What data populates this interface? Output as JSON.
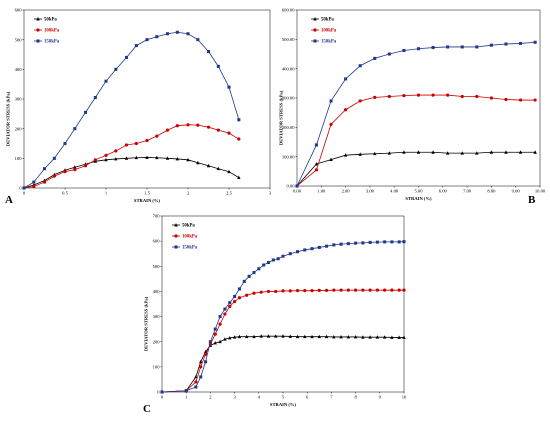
{
  "chart_data": [
    {
      "panel_label": "A",
      "type": "line",
      "xlabel": "STRAIN (%)",
      "ylabel": "DEVIATOR STRESS (kPa)",
      "xlim": [
        0,
        3
      ],
      "ylim": [
        0,
        600
      ],
      "x_ticks": [
        "0",
        "0.5",
        "1",
        "1.5",
        "2",
        "2.5",
        "3"
      ],
      "y_ticks": [
        "0",
        "100",
        "200",
        "300",
        "400",
        "500",
        "600"
      ],
      "legend_position": "top-left",
      "grid": false,
      "series": [
        {
          "name": "50kPa",
          "color": "#000000",
          "marker": "triangle",
          "x": [
            0,
            0.12,
            0.25,
            0.37,
            0.5,
            0.62,
            0.75,
            0.87,
            1.0,
            1.12,
            1.25,
            1.37,
            1.5,
            1.62,
            1.75,
            1.87,
            2.0,
            2.12,
            2.25,
            2.37,
            2.5,
            2.62
          ],
          "y": [
            0,
            10,
            25,
            45,
            60,
            70,
            80,
            90,
            95,
            98,
            100,
            102,
            103,
            102,
            100,
            98,
            95,
            85,
            75,
            65,
            55,
            35
          ]
        },
        {
          "name": "100kPa",
          "color": "#cc0000",
          "marker": "circle",
          "x": [
            0,
            0.12,
            0.25,
            0.37,
            0.5,
            0.62,
            0.75,
            0.87,
            1.0,
            1.12,
            1.25,
            1.37,
            1.5,
            1.62,
            1.75,
            1.87,
            2.0,
            2.12,
            2.25,
            2.37,
            2.5,
            2.62
          ],
          "y": [
            0,
            5,
            20,
            40,
            55,
            62,
            75,
            95,
            110,
            125,
            145,
            150,
            160,
            175,
            195,
            210,
            213,
            212,
            205,
            195,
            185,
            165
          ]
        },
        {
          "name": "150kPa",
          "color": "#1f3a8a",
          "marker": "square",
          "x": [
            0,
            0.12,
            0.25,
            0.37,
            0.5,
            0.62,
            0.75,
            0.87,
            1.0,
            1.12,
            1.25,
            1.37,
            1.5,
            1.62,
            1.75,
            1.87,
            2.0,
            2.12,
            2.25,
            2.37,
            2.5,
            2.62
          ],
          "y": [
            0,
            20,
            65,
            100,
            150,
            200,
            255,
            305,
            360,
            400,
            440,
            480,
            500,
            510,
            520,
            525,
            520,
            500,
            460,
            410,
            340,
            230
          ]
        }
      ]
    },
    {
      "panel_label": "B",
      "type": "line",
      "xlabel": "STRAIN (%)",
      "ylabel": "DEVIATOR STRESS (kPa)",
      "xlim": [
        0,
        10
      ],
      "ylim": [
        0,
        600
      ],
      "x_ticks": [
        "0.00",
        "1.00",
        "2.00",
        "3.00",
        "4.00",
        "5.00",
        "6.00",
        "7.00",
        "8.00",
        "9.00",
        "10.00"
      ],
      "y_ticks": [
        "0.00",
        "100.00",
        "200.00",
        "300.00",
        "400.00",
        "500.00",
        "600.00"
      ],
      "legend_position": "top-left",
      "grid": false,
      "series": [
        {
          "name": "50kPa",
          "color": "#000000",
          "marker": "triangle",
          "x": [
            0,
            0.8,
            1.4,
            2.0,
            2.6,
            3.2,
            3.8,
            4.4,
            5.0,
            5.6,
            6.2,
            6.8,
            7.4,
            8.0,
            8.6,
            9.2,
            9.8
          ],
          "y": [
            0,
            75,
            90,
            105,
            108,
            110,
            112,
            115,
            115,
            115,
            112,
            112,
            112,
            115,
            115,
            115,
            115
          ]
        },
        {
          "name": "100kPa",
          "color": "#cc0000",
          "marker": "circle",
          "x": [
            0,
            0.8,
            1.4,
            2.0,
            2.6,
            3.2,
            3.8,
            4.4,
            5.0,
            5.6,
            6.2,
            6.8,
            7.4,
            8.0,
            8.6,
            9.2,
            9.8
          ],
          "y": [
            0,
            55,
            210,
            260,
            290,
            302,
            305,
            308,
            310,
            310,
            310,
            305,
            305,
            300,
            295,
            293,
            293
          ]
        },
        {
          "name": "150kPa",
          "color": "#1f3a8a",
          "marker": "square",
          "x": [
            0,
            0.8,
            1.4,
            2.0,
            2.6,
            3.2,
            3.8,
            4.4,
            5.0,
            5.6,
            6.2,
            6.8,
            7.4,
            8.0,
            8.6,
            9.2,
            9.8
          ],
          "y": [
            0,
            140,
            290,
            365,
            410,
            435,
            450,
            462,
            468,
            472,
            474,
            474,
            474,
            480,
            484,
            486,
            490
          ]
        }
      ]
    },
    {
      "panel_label": "C",
      "type": "line",
      "xlabel": "STRAIN (%)",
      "ylabel": "DEVIATOR STRESS (kPa)",
      "xlim": [
        0,
        10
      ],
      "ylim": [
        0,
        700
      ],
      "x_ticks": [
        "0",
        "1",
        "2",
        "3",
        "4",
        "5",
        "6",
        "7",
        "8",
        "9",
        "10"
      ],
      "y_ticks": [
        "0",
        "100",
        "200",
        "300",
        "400",
        "500",
        "600",
        "700"
      ],
      "legend_position": "top-left",
      "grid": false,
      "series": [
        {
          "name": "50kPa",
          "color": "#000000",
          "marker": "triangle",
          "x": [
            0,
            1.0,
            1.4,
            1.6,
            1.8,
            2.0,
            2.2,
            2.4,
            2.6,
            2.8,
            3.0,
            3.2,
            3.5,
            3.8,
            4.1,
            4.4,
            4.7,
            5.0,
            5.3,
            5.6,
            5.9,
            6.2,
            6.5,
            6.8,
            7.1,
            7.4,
            7.7,
            8.0,
            8.3,
            8.6,
            8.9,
            9.2,
            9.5,
            9.8,
            10.0
          ],
          "y": [
            0,
            5,
            60,
            120,
            160,
            185,
            195,
            200,
            210,
            215,
            218,
            220,
            220,
            220,
            222,
            222,
            222,
            222,
            221,
            220,
            220,
            220,
            220,
            220,
            219,
            219,
            219,
            219,
            218,
            218,
            218,
            218,
            217,
            217,
            217
          ]
        },
        {
          "name": "100kPa",
          "color": "#cc0000",
          "marker": "circle",
          "x": [
            0,
            1.0,
            1.4,
            1.6,
            1.8,
            2.0,
            2.2,
            2.4,
            2.6,
            2.8,
            3.0,
            3.2,
            3.5,
            3.8,
            4.1,
            4.4,
            4.7,
            5.0,
            5.3,
            5.6,
            5.9,
            6.2,
            6.5,
            6.8,
            7.1,
            7.4,
            7.7,
            8.0,
            8.3,
            8.6,
            8.9,
            9.2,
            9.5,
            9.8,
            10.0
          ],
          "y": [
            0,
            5,
            40,
            100,
            150,
            190,
            230,
            270,
            310,
            340,
            360,
            375,
            385,
            393,
            397,
            400,
            400,
            402,
            402,
            403,
            403,
            403,
            404,
            404,
            405,
            405,
            405,
            405,
            405,
            405,
            405,
            405,
            405,
            405,
            405
          ]
        },
        {
          "name": "150kPa",
          "color": "#1f3a8a",
          "marker": "square",
          "x": [
            0,
            1.0,
            1.4,
            1.6,
            1.8,
            2.0,
            2.2,
            2.4,
            2.6,
            2.8,
            3.0,
            3.2,
            3.4,
            3.6,
            3.8,
            4.0,
            4.2,
            4.4,
            4.6,
            4.8,
            5.0,
            5.3,
            5.6,
            5.9,
            6.2,
            6.5,
            6.8,
            7.1,
            7.4,
            7.7,
            8.0,
            8.3,
            8.6,
            8.9,
            9.2,
            9.5,
            9.8,
            10.0
          ],
          "y": [
            0,
            5,
            20,
            60,
            120,
            200,
            250,
            300,
            330,
            355,
            380,
            410,
            440,
            460,
            475,
            490,
            505,
            515,
            525,
            530,
            540,
            550,
            558,
            565,
            570,
            575,
            580,
            585,
            588,
            590,
            592,
            593,
            595,
            596,
            597,
            597,
            597,
            598
          ]
        }
      ]
    }
  ]
}
